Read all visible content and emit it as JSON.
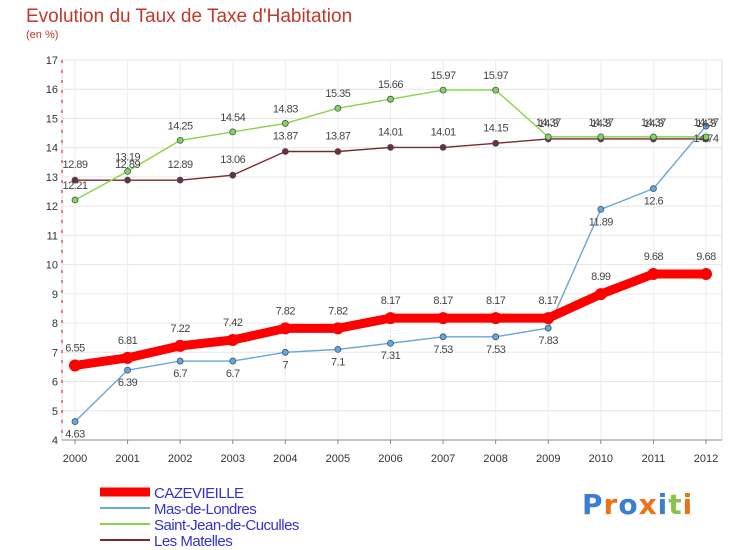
{
  "title": "Evolution du Taux de Taxe d'Habitation",
  "subtitle": "(en %)",
  "logo_text": "Proxiti",
  "chart_data": {
    "type": "line",
    "title": "Evolution du Taux de Taxe d'Habitation",
    "ylabel": "(en %)",
    "xlabel": "",
    "x": [
      "2000",
      "2001",
      "2002",
      "2003",
      "2004",
      "2005",
      "2006",
      "2007",
      "2008",
      "2009",
      "2010",
      "2011",
      "2012"
    ],
    "ylim": [
      4,
      17
    ],
    "yticks": [
      "4",
      "5",
      "6",
      "7",
      "8",
      "9",
      "10",
      "11",
      "12",
      "13",
      "14",
      "15",
      "16",
      "17"
    ],
    "grid": true,
    "legend_position": "bottom-left",
    "series": [
      {
        "name": "CAZEVIEILLE",
        "color": "#ff0000",
        "values": [
          6.55,
          6.81,
          7.22,
          7.42,
          7.82,
          7.82,
          8.17,
          8.17,
          8.17,
          8.17,
          8.99,
          9.68,
          9.68
        ],
        "labels": [
          "6.55",
          "6.81",
          "7.22",
          "7.42",
          "7.82",
          "7.82",
          "8.17",
          "8.17",
          "8.17",
          "8.17",
          "8.99",
          "9.68",
          "9.68"
        ]
      },
      {
        "name": "Mas-de-Londres",
        "color": "#6aa6d8",
        "values": [
          4.63,
          6.39,
          6.7,
          6.7,
          7.0,
          7.1,
          7.31,
          7.53,
          7.53,
          7.83,
          11.89,
          12.6,
          14.74
        ],
        "labels": [
          "4.63",
          "6.39",
          "6.7",
          "6.7",
          "7",
          "7.1",
          "7.31",
          "7.53",
          "7.53",
          "7.83",
          "11.89",
          "12.6",
          "14.74"
        ]
      },
      {
        "name": "Saint-Jean-de-Cuculles",
        "color": "#8bd34a",
        "values": [
          12.21,
          13.19,
          14.25,
          14.54,
          14.83,
          15.35,
          15.66,
          15.97,
          15.97,
          14.37,
          14.37,
          14.37,
          14.37
        ],
        "labels": [
          "12.21",
          "13.19",
          "14.25",
          "14.54",
          "14.83",
          "15.35",
          "15.66",
          "15.97",
          "15.97",
          "14.37",
          "14.37",
          "14.37",
          "14.37"
        ]
      },
      {
        "name": "Les Matelles",
        "color": "#7a2a2a",
        "values": [
          12.89,
          12.89,
          12.89,
          13.06,
          13.87,
          13.87,
          14.01,
          14.01,
          14.15,
          14.3,
          14.3,
          14.3,
          14.3
        ],
        "labels": [
          "12.89",
          "12.89",
          "12.89",
          "13.06",
          "13.87",
          "13.87",
          "14.01",
          "14.01",
          "14.15",
          "14.3",
          "14.3",
          "14.3",
          "14.3"
        ]
      }
    ]
  }
}
